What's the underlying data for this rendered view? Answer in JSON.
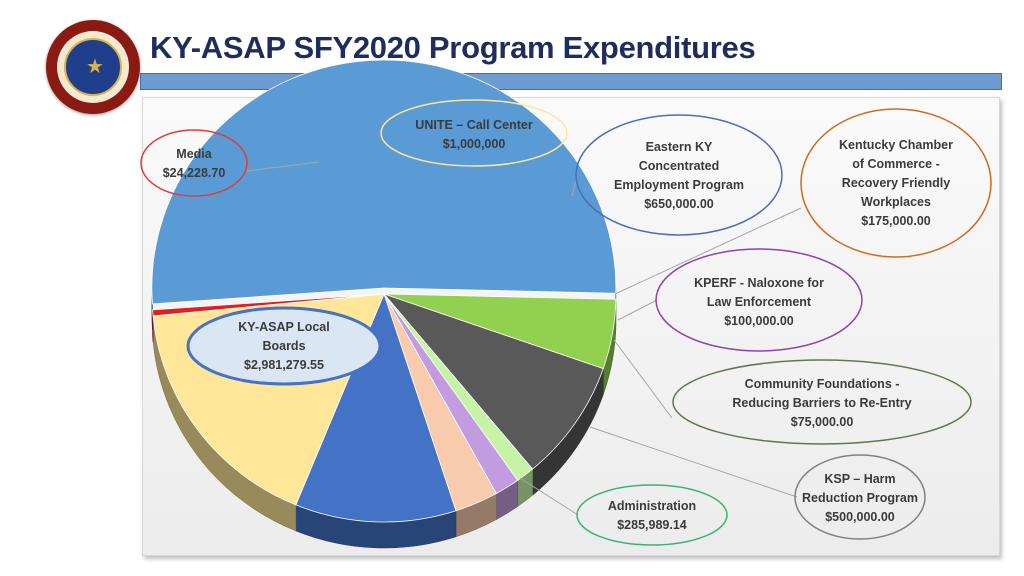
{
  "header": {
    "title": "KY-ASAP SFY2020 Program Expenditures",
    "logo": {
      "name": "office-of-drug-control-policy-seal",
      "text": "OFFICE OF DRUG CONTROL POLICY · COMMONWEALTH OF KENTUCKY · JUSTICE & PUBLIC SAFETY CABINET"
    }
  },
  "chart_data": {
    "type": "pie",
    "title": "",
    "slices": [
      {
        "lines": [
          "KY-ASAP Local",
          "Boards",
          "$2,981,279.55"
        ],
        "value": 2981279.55,
        "color": "#5b9bd5",
        "ring": "#4472c4"
      },
      {
        "lines": [
          "Administration",
          "$285,989.14"
        ],
        "value": 285989.14,
        "color": "#92d050",
        "ring": "#3cb371"
      },
      {
        "lines": [
          "KSP – Harm",
          "Reduction Program",
          "$500,000.00"
        ],
        "value": 500000.0,
        "color": "#595959",
        "ring": "#808080"
      },
      {
        "lines": [
          "Community Foundations -",
          "Reducing Barriers to Re-Entry",
          "$75,000.00"
        ],
        "value": 75000.0,
        "color": "#c6f3a6",
        "ring": "#5c7a4c"
      },
      {
        "lines": [
          "KPERF - Naloxone for",
          "Law Enforcement",
          "$100,000.00"
        ],
        "value": 100000.0,
        "color": "#c39be0",
        "ring": "#8e44ad"
      },
      {
        "lines": [
          "Kentucky Chamber",
          "of Commerce -",
          "Recovery Friendly",
          "Workplaces",
          "$175,000.00"
        ],
        "value": 175000.0,
        "color": "#f8cbad",
        "ring": "#d2691e"
      },
      {
        "lines": [
          "Eastern KY",
          "Concentrated",
          "Employment Program",
          "$650,000.00"
        ],
        "value": 650000.0,
        "color": "#4472c4",
        "ring": "#4a6fb5"
      },
      {
        "lines": [
          "UNITE – Call Center",
          "$1,000,000"
        ],
        "value": 1000000.0,
        "color": "#ffe699",
        "ring": "#ffe699"
      },
      {
        "lines": [
          "Media",
          "$24,228.70"
        ],
        "value": 24228.7,
        "color": "#e02020",
        "ring": "#e03c3c"
      }
    ]
  }
}
